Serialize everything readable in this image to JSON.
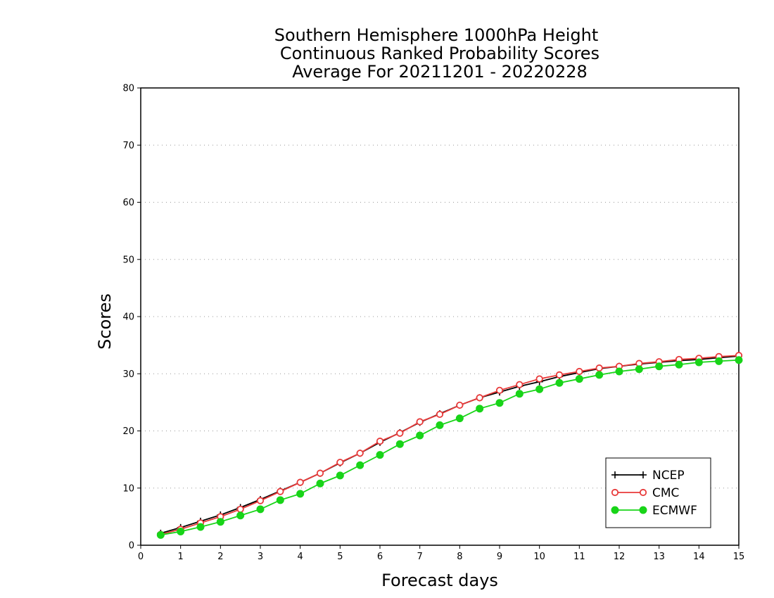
{
  "chart_data": {
    "type": "line",
    "title_lines": [
      "Southern Hemisphere 1000hPa Height",
      "Continuous Ranked Probability Scores",
      "Average For 20211201 - 20220228"
    ],
    "xlabel": "Forecast days",
    "ylabel": "Scores",
    "xlim": [
      0,
      15
    ],
    "ylim": [
      0,
      80
    ],
    "xticks": [
      0,
      1,
      2,
      3,
      4,
      5,
      6,
      7,
      8,
      9,
      10,
      11,
      12,
      13,
      14,
      15
    ],
    "yticks": [
      0,
      10,
      20,
      30,
      40,
      50,
      60,
      70,
      80
    ],
    "grid": "horizontal dotted",
    "legend_position": "bottom-right",
    "x": [
      0.5,
      1,
      1.5,
      2,
      2.5,
      3,
      3.5,
      4,
      4.5,
      5,
      5.5,
      6,
      6.5,
      7,
      7.5,
      8,
      8.5,
      9,
      9.5,
      10,
      10.5,
      11,
      11.5,
      12,
      12.5,
      13,
      13.5,
      14,
      14.5,
      15
    ],
    "series": [
      {
        "name": "NCEP",
        "color": "#000000",
        "marker": "plus",
        "values": [
          2.1,
          3.1,
          4.2,
          5.3,
          6.6,
          8.0,
          9.5,
          11.0,
          12.6,
          14.4,
          16.1,
          18.0,
          19.7,
          21.5,
          23.0,
          24.5,
          25.8,
          26.8,
          27.8,
          28.6,
          29.5,
          30.2,
          30.9,
          31.3,
          31.7,
          32.0,
          32.3,
          32.5,
          32.8,
          33.1
        ]
      },
      {
        "name": "CMC",
        "color": "#e83a3a",
        "marker": "open-circle",
        "values": [
          1.9,
          2.8,
          3.9,
          5.0,
          6.3,
          7.8,
          9.4,
          11.0,
          12.6,
          14.5,
          16.1,
          18.2,
          19.6,
          21.6,
          22.9,
          24.5,
          25.8,
          27.1,
          28.1,
          29.1,
          29.8,
          30.4,
          31.0,
          31.3,
          31.8,
          32.1,
          32.5,
          32.7,
          33.0,
          33.2
        ]
      },
      {
        "name": "ECMWF",
        "color": "#18d418",
        "marker": "filled-circle",
        "values": [
          1.8,
          2.4,
          3.2,
          4.1,
          5.2,
          6.3,
          7.9,
          9.0,
          10.8,
          12.2,
          14.0,
          15.8,
          17.7,
          19.2,
          21.0,
          22.2,
          23.9,
          24.9,
          26.5,
          27.3,
          28.4,
          29.1,
          29.8,
          30.4,
          30.8,
          31.3,
          31.6,
          32.0,
          32.2,
          32.4
        ]
      }
    ]
  }
}
